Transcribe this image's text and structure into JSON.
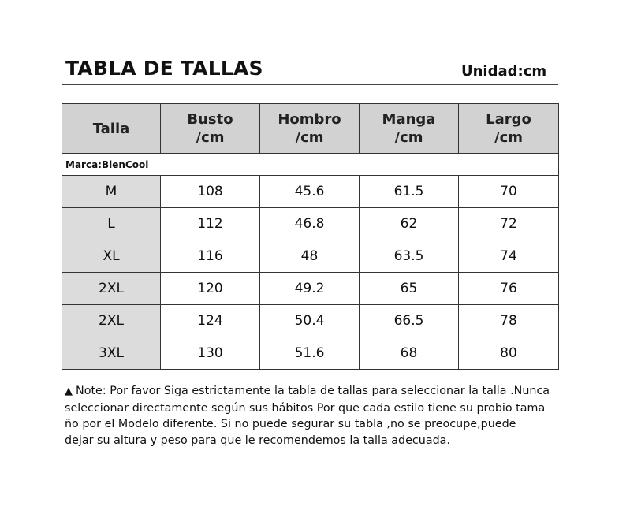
{
  "header": {
    "title": "TABLA DE TALLAS",
    "unit": "Unidad:cm"
  },
  "table": {
    "columns": [
      {
        "line1": "Talla",
        "line2": ""
      },
      {
        "line1": "Busto",
        "line2": "/cm"
      },
      {
        "line1": "Hombro",
        "line2": "/cm"
      },
      {
        "line1": "Manga",
        "line2": "/cm"
      },
      {
        "line1": "Largo",
        "line2": "/cm"
      }
    ],
    "brand": "Marca:BienCool",
    "rows": [
      {
        "size": "M",
        "busto": "108",
        "hombro": "45.6",
        "manga": "61.5",
        "largo": "70"
      },
      {
        "size": "L",
        "busto": "112",
        "hombro": "46.8",
        "manga": "62",
        "largo": "72"
      },
      {
        "size": "XL",
        "busto": "116",
        "hombro": "48",
        "manga": "63.5",
        "largo": "74"
      },
      {
        "size": "2XL",
        "busto": "120",
        "hombro": "49.2",
        "manga": "65",
        "largo": "76"
      },
      {
        "size": "2XL",
        "busto": "124",
        "hombro": "50.4",
        "manga": "66.5",
        "largo": "78"
      },
      {
        "size": "3XL",
        "busto": "130",
        "hombro": "51.6",
        "manga": "68",
        "largo": "80"
      }
    ]
  },
  "note": {
    "bullet": "▲",
    "lines": [
      "Note: Por favor Siga estrictamente la tabla de tallas para seleccionar la talla .Nunca",
      "seleccionar directamente según sus hábitos Por que cada estilo tiene su probio tama",
      "ño por el Modelo diferente. Si no puede segurar su tabla ,no se preocupe,puede",
      "dejar su altura y peso para que le recomendemos la talla adecuada."
    ]
  },
  "colors": {
    "header_fill": "#d2d2d2",
    "size_cell_fill": "#dcdcdc",
    "border": "#333333",
    "text": "#111111"
  }
}
